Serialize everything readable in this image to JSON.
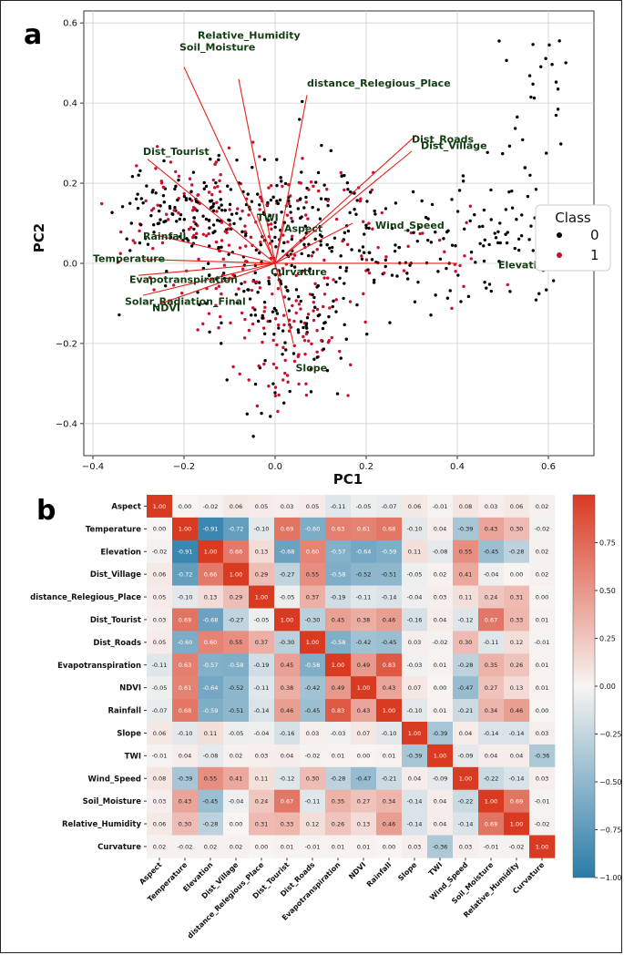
{
  "panel_a_label": "a",
  "panel_b_label": "b",
  "chart_data": [
    {
      "type": "scatter",
      "title": "",
      "xlabel": "PC1",
      "ylabel": "PC2",
      "xlim": [
        -0.42,
        0.7
      ],
      "ylim": [
        -0.48,
        0.63
      ],
      "xticks": [
        -0.4,
        -0.2,
        0.0,
        0.2,
        0.4,
        0.6
      ],
      "yticks": [
        -0.4,
        -0.2,
        0.0,
        0.2,
        0.4,
        0.6
      ],
      "xtick_labels": [
        "−0.4",
        "−0.2",
        "0.0",
        "0.2",
        "0.4",
        "0.6"
      ],
      "ytick_labels": [
        "−0.4",
        "−0.2",
        "0.0",
        "0.2",
        "0.4",
        "0.6"
      ],
      "grid": true,
      "legend": {
        "title": "Class",
        "entries": [
          "0",
          "1"
        ],
        "colors": [
          "#000000",
          "#c8102e"
        ],
        "placement": "right"
      },
      "loadings": [
        {
          "name": "Relative_Humidity",
          "x": -0.08,
          "y": 0.46,
          "lx": -0.17,
          "ly": 0.57
        },
        {
          "name": "Soil_Moisture",
          "x": -0.2,
          "y": 0.49,
          "lx": -0.21,
          "ly": 0.54
        },
        {
          "name": "distance_Relegious_Place",
          "x": 0.07,
          "y": 0.42,
          "lx": 0.07,
          "ly": 0.45
        },
        {
          "name": "Dist_Roads",
          "x": 0.31,
          "y": 0.32,
          "lx": 0.3,
          "ly": 0.31
        },
        {
          "name": "Dist_Village",
          "x": 0.3,
          "y": 0.28,
          "lx": 0.32,
          "ly": 0.295
        },
        {
          "name": "Dist_Tourist",
          "x": -0.28,
          "y": 0.26,
          "lx": -0.29,
          "ly": 0.28
        },
        {
          "name": "TWI",
          "x": -0.04,
          "y": 0.12,
          "lx": -0.04,
          "ly": 0.115
        },
        {
          "name": "Aspect",
          "x": 0.02,
          "y": 0.1,
          "lx": 0.02,
          "ly": 0.087
        },
        {
          "name": "Wind_Speed",
          "x": 0.17,
          "y": 0.1,
          "lx": 0.22,
          "ly": 0.095
        },
        {
          "name": "Rainfall",
          "x": -0.26,
          "y": 0.07,
          "lx": -0.29,
          "ly": 0.068
        },
        {
          "name": "Temperature",
          "x": -0.29,
          "y": 0.01,
          "lx": -0.4,
          "ly": 0.012
        },
        {
          "name": "Elevation",
          "x": 0.4,
          "y": 0.0,
          "lx": 0.49,
          "ly": -0.003
        },
        {
          "name": "Curvature",
          "x": 0.0,
          "y": -0.01,
          "lx": -0.01,
          "ly": -0.02
        },
        {
          "name": "Evapotranspiration",
          "x": -0.3,
          "y": -0.03,
          "lx": -0.32,
          "ly": -0.04
        },
        {
          "name": "Solar_Radiation_Final",
          "x": -0.29,
          "y": -0.08,
          "lx": -0.33,
          "ly": -0.094
        },
        {
          "name": "NDVI",
          "x": -0.25,
          "y": -0.1,
          "lx": -0.27,
          "ly": -0.11
        },
        {
          "name": "Slope",
          "x": 0.04,
          "y": -0.2,
          "lx": 0.045,
          "ly": -0.26
        }
      ]
    },
    {
      "type": "heatmap",
      "labels": [
        "Aspect",
        "Temperature",
        "Elevation",
        "Dist_Village",
        "distance_Relegious_Place",
        "Dist_Tourist",
        "Dist_Roads",
        "Evapotranspiration",
        "NDVI",
        "Rainfall",
        "Slope",
        "TWI",
        "Wind_Speed",
        "Soil_Moisture",
        "Relative_Humidity",
        "Curvature"
      ],
      "values": [
        [
          1.0,
          0.0,
          -0.02,
          0.06,
          0.05,
          0.03,
          0.05,
          -0.11,
          -0.05,
          -0.07,
          0.06,
          -0.01,
          0.08,
          0.03,
          0.06,
          0.02
        ],
        [
          0.0,
          1.0,
          -0.91,
          -0.72,
          -0.1,
          0.69,
          -0.6,
          0.63,
          0.61,
          0.68,
          -0.1,
          0.04,
          -0.39,
          0.43,
          0.3,
          -0.02
        ],
        [
          -0.02,
          -0.91,
          1.0,
          0.66,
          0.13,
          -0.68,
          0.6,
          -0.57,
          -0.64,
          -0.59,
          0.11,
          -0.08,
          0.55,
          -0.45,
          -0.28,
          0.02
        ],
        [
          0.06,
          -0.72,
          0.66,
          1.0,
          0.29,
          -0.27,
          0.55,
          -0.58,
          -0.52,
          -0.51,
          -0.05,
          0.02,
          0.41,
          -0.04,
          0.0,
          0.02
        ],
        [
          0.05,
          -0.1,
          0.13,
          0.29,
          1.0,
          -0.05,
          0.37,
          -0.19,
          -0.11,
          -0.14,
          -0.04,
          0.03,
          0.11,
          0.24,
          0.31,
          0.0
        ],
        [
          0.03,
          0.69,
          -0.68,
          -0.27,
          -0.05,
          1.0,
          -0.3,
          0.45,
          0.38,
          0.46,
          -0.16,
          0.04,
          -0.12,
          0.67,
          0.33,
          0.01
        ],
        [
          0.05,
          -0.6,
          0.6,
          0.55,
          0.37,
          -0.3,
          1.0,
          -0.58,
          -0.42,
          -0.45,
          0.03,
          -0.02,
          0.3,
          -0.11,
          0.12,
          -0.01
        ],
        [
          -0.11,
          0.63,
          -0.57,
          -0.58,
          -0.19,
          0.45,
          -0.58,
          1.0,
          0.49,
          0.83,
          -0.03,
          0.01,
          -0.28,
          0.35,
          0.26,
          0.01
        ],
        [
          -0.05,
          0.61,
          -0.64,
          -0.52,
          -0.11,
          0.38,
          -0.42,
          0.49,
          1.0,
          0.43,
          0.07,
          0.0,
          -0.47,
          0.27,
          0.13,
          0.01
        ],
        [
          -0.07,
          0.68,
          -0.59,
          -0.51,
          -0.14,
          0.46,
          -0.45,
          0.83,
          0.43,
          1.0,
          -0.1,
          0.01,
          -0.21,
          0.34,
          0.46,
          0.0
        ],
        [
          0.06,
          -0.1,
          0.11,
          -0.05,
          -0.04,
          -0.16,
          0.03,
          -0.03,
          0.07,
          -0.1,
          1.0,
          -0.39,
          0.04,
          -0.14,
          -0.14,
          0.03
        ],
        [
          -0.01,
          0.04,
          -0.08,
          0.02,
          0.03,
          0.04,
          -0.02,
          0.01,
          0.0,
          0.01,
          -0.39,
          1.0,
          -0.09,
          0.04,
          0.04,
          -0.36
        ],
        [
          0.08,
          -0.39,
          0.55,
          0.41,
          0.11,
          -0.12,
          0.3,
          -0.28,
          -0.47,
          -0.21,
          0.04,
          -0.09,
          1.0,
          -0.22,
          -0.14,
          0.03
        ],
        [
          0.03,
          0.43,
          -0.45,
          -0.04,
          0.24,
          0.67,
          -0.11,
          0.35,
          0.27,
          0.34,
          -0.14,
          0.04,
          -0.22,
          1.0,
          0.69,
          -0.01
        ],
        [
          0.06,
          0.3,
          -0.28,
          0.0,
          0.31,
          0.33,
          0.12,
          0.26,
          0.13,
          0.46,
          -0.14,
          0.04,
          -0.14,
          0.69,
          1.0,
          -0.02
        ],
        [
          0.02,
          -0.02,
          0.02,
          0.02,
          0.0,
          0.01,
          -0.01,
          0.01,
          0.01,
          0.0,
          0.03,
          -0.36,
          0.03,
          -0.01,
          -0.02,
          1.0
        ]
      ],
      "colorbar": {
        "range": [
          -1.0,
          1.0
        ],
        "ticks": [
          0.75,
          0.5,
          0.25,
          0.0,
          -0.25,
          -0.5,
          -0.75,
          -1.0
        ],
        "tick_labels": [
          "0.75",
          "0.50",
          "0.25",
          "0.00",
          "−0.25",
          "−0.50",
          "−0.75",
          "−1.00"
        ],
        "neg_color": "#2a7ca8",
        "mid_color": "#f7f4f2",
        "pos_color": "#d93a22"
      }
    }
  ]
}
